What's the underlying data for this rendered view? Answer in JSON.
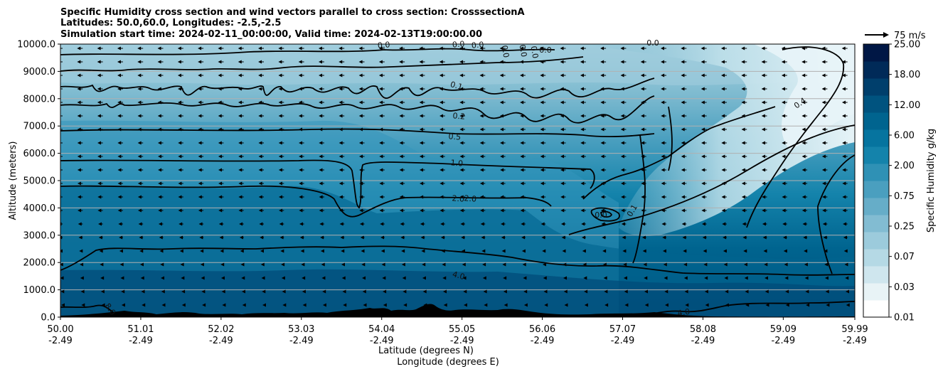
{
  "chart_data": {
    "type": "contour",
    "title_lines": [
      "Specific Humidity cross section and wind vectors parallel to cross section: CrosssectionA",
      "Latitudes: 50.0,60.0, Longitudes: -2.5,-2.5",
      "Simulation start time: 2024-02-11_00:00:00, Valid time: 2024-02-13T19:00:00.00"
    ],
    "ylabel": "Altitude (meters)",
    "xlabel_lat": "Latitude (degrees N)",
    "xlabel_lon": "Longitude (degrees E)",
    "xlim": [
      50.0,
      59.99
    ],
    "ylim": [
      0,
      10000
    ],
    "y_ticks": [
      "0.0",
      "1000.0",
      "2000.0",
      "3000.0",
      "4000.0",
      "5000.0",
      "6000.0",
      "7000.0",
      "8000.0",
      "9000.0",
      "10000.0"
    ],
    "x_ticks": [
      {
        "lat": "50.00",
        "lon": "-2.49"
      },
      {
        "lat": "51.01",
        "lon": "-2.49"
      },
      {
        "lat": "52.02",
        "lon": "-2.49"
      },
      {
        "lat": "53.03",
        "lon": "-2.49"
      },
      {
        "lat": "54.04",
        "lon": "-2.49"
      },
      {
        "lat": "55.05",
        "lon": "-2.49"
      },
      {
        "lat": "56.06",
        "lon": "-2.49"
      },
      {
        "lat": "57.07",
        "lon": "-2.49"
      },
      {
        "lat": "58.08",
        "lon": "-2.49"
      },
      {
        "lat": "59.09",
        "lon": "-2.49"
      },
      {
        "lat": "59.99",
        "lon": "-2.49"
      }
    ],
    "colorbar_label": "Specific Humidity g/kg",
    "colorbar_ticks": [
      "0.01",
      "0.03",
      "0.07",
      "0.25",
      "0.75",
      "2.00",
      "6.00",
      "12.00",
      "18.00",
      "25.00"
    ],
    "wind_reference_label": "75 m/s",
    "contour_labels": [
      "0.0",
      "0.0",
      "0.0",
      "0.0",
      "0.0",
      "0.0",
      "0.0",
      "0.1",
      "0.2",
      "0.5",
      "1.0",
      "2.0",
      "2.0",
      "4.0",
      "4.0",
      "8.0",
      "0.0",
      "0.1",
      "0.4",
      "0.0"
    ],
    "grid": "horizontal",
    "colors": [
      "#ffffff",
      "#e8f3f6",
      "#cfe6ee",
      "#b5d9e5",
      "#9ccbdc",
      "#82bcd2",
      "#66adc8",
      "#4a9fbf",
      "#2f91b5",
      "#1483ab",
      "#06749f",
      "#00648f",
      "#00537f",
      "#003f6c",
      "#002a58",
      "#001745"
    ]
  }
}
